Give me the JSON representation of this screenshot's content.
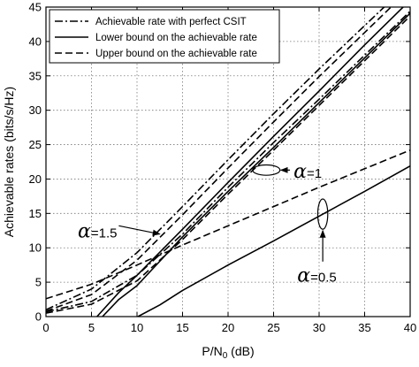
{
  "chart_data": {
    "type": "line",
    "xlabel_base": "P/N",
    "xlabel_sub": "0",
    "xlabel_unit": " (dB)",
    "ylabel": "Achievable rates (bits/s/Hz)",
    "xlim": [
      0,
      40
    ],
    "ylim": [
      0,
      45
    ],
    "xticks": [
      0,
      5,
      10,
      15,
      20,
      25,
      30,
      35,
      40
    ],
    "yticks": [
      0,
      5,
      10,
      15,
      20,
      25,
      30,
      35,
      40,
      45
    ],
    "grid": true,
    "legend": {
      "placement": "top-left",
      "entries": [
        {
          "label": "Achievable rate with perfect CSIT",
          "style": "dashdot"
        },
        {
          "label": "Lower bound on the achievable rate",
          "style": "solid"
        },
        {
          "label": "Upper bound on the achievable rate",
          "style": "dashed"
        }
      ]
    },
    "series": [
      {
        "style": "dashdot",
        "group": "alpha=1",
        "x": [
          0,
          5,
          10,
          15,
          20,
          25,
          30,
          35,
          40
        ],
        "y": [
          0.7,
          2.2,
          6.0,
          12.0,
          18.8,
          25.3,
          31.6,
          38.0,
          44.4
        ]
      },
      {
        "style": "solid",
        "group": "alpha=1",
        "x": [
          6.2,
          8,
          10,
          15,
          20,
          25,
          30,
          35,
          40
        ],
        "y": [
          0,
          2.5,
          4.5,
          11.6,
          18.2,
          24.6,
          31.1,
          37.6,
          44.1
        ]
      },
      {
        "style": "dashed",
        "group": "alpha=1",
        "x": [
          0,
          5,
          10,
          15,
          20,
          25,
          30,
          35,
          40
        ],
        "y": [
          0.5,
          1.8,
          5.2,
          11.2,
          17.8,
          24.2,
          30.7,
          37.2,
          43.7
        ]
      },
      {
        "style": "dashdot",
        "group": "alpha=1.5",
        "x": [
          0,
          5,
          10,
          15,
          20,
          25,
          30,
          35,
          40
        ],
        "y": [
          1.0,
          4.0,
          9.3,
          16.0,
          22.8,
          29.5,
          36.0,
          42.3,
          48.6
        ]
      },
      {
        "style": "solid",
        "group": "alpha=1.5",
        "x": [
          5.6,
          8,
          10,
          15,
          20,
          25,
          30,
          35,
          40
        ],
        "y": [
          0,
          3.5,
          6.0,
          12.7,
          19.5,
          26.2,
          32.8,
          39.5,
          46.0
        ]
      },
      {
        "style": "dashed",
        "group": "alpha=1.5",
        "x": [
          0,
          5,
          10,
          15,
          20,
          25,
          30,
          35,
          40
        ],
        "y": [
          0.8,
          3.2,
          8.2,
          14.8,
          21.6,
          28.3,
          34.9,
          41.3,
          47.7
        ]
      },
      {
        "style": "dashed",
        "group": "alpha=0.5",
        "x": [
          0,
          5,
          10,
          15,
          20,
          25,
          30,
          35,
          40
        ],
        "y": [
          2.6,
          4.7,
          7.5,
          10.4,
          13.2,
          16.0,
          18.8,
          21.5,
          24.2
        ]
      },
      {
        "style": "solid",
        "group": "alpha=0.5",
        "x": [
          10.1,
          12.5,
          15,
          20,
          25,
          30,
          35,
          40
        ],
        "y": [
          0,
          1.7,
          3.8,
          7.5,
          11.0,
          14.6,
          18.2,
          21.9
        ]
      }
    ],
    "annotations": [
      {
        "symbol": "α",
        "text": "=1.5",
        "tx": 3.5,
        "ty": 11.5,
        "ax1": 8.0,
        "ay1": 13.2,
        "ax2": 12.5,
        "ay2": 12.0
      },
      {
        "symbol": "α",
        "text": "=1",
        "tx": 27.2,
        "ty": 20.2,
        "ex": 24.2,
        "ey": 21.3,
        "erx": 1.5,
        "ery": 0.75,
        "ax1": 26.8,
        "ay1": 21.3,
        "ax2": 25.8,
        "ay2": 21.3
      },
      {
        "symbol": "α",
        "text": "=0.5",
        "tx": 27.6,
        "ty": 5.1,
        "ex": 30.4,
        "ey": 14.9,
        "erx": 0.55,
        "ery": 2.2,
        "ax1": 30.4,
        "ay1": 8.0,
        "ax2": 30.4,
        "ay2": 12.5
      }
    ]
  }
}
